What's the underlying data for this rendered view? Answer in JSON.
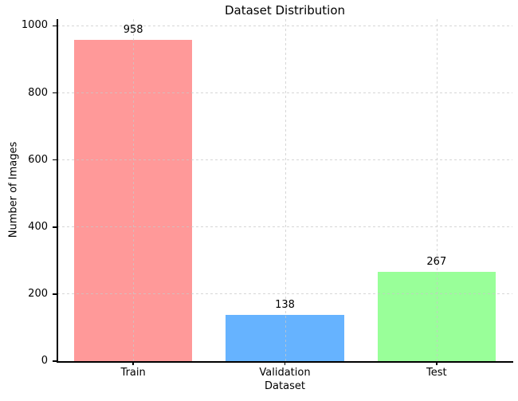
{
  "chart_data": {
    "type": "bar",
    "title": "Dataset Distribution",
    "xlabel": "Dataset",
    "ylabel": "Number of Images",
    "categories": [
      "Train",
      "Validation",
      "Test"
    ],
    "values": [
      958,
      138,
      267
    ],
    "bar_value_labels": [
      "958",
      "138",
      "267"
    ],
    "bar_colors": [
      "#ff9999",
      "#66b3ff",
      "#99ff99"
    ],
    "ylim": [
      0,
      1020
    ],
    "yticks": [
      0,
      200,
      400,
      600,
      800,
      1000
    ],
    "grid": true,
    "grid_line_style": "dashed",
    "grid_drawn_over_bars": true,
    "grid_color": "#c8c8c8",
    "axis_color": "#000000",
    "text_color": "#000000",
    "background_color": "#ffffff",
    "legend": "none"
  }
}
